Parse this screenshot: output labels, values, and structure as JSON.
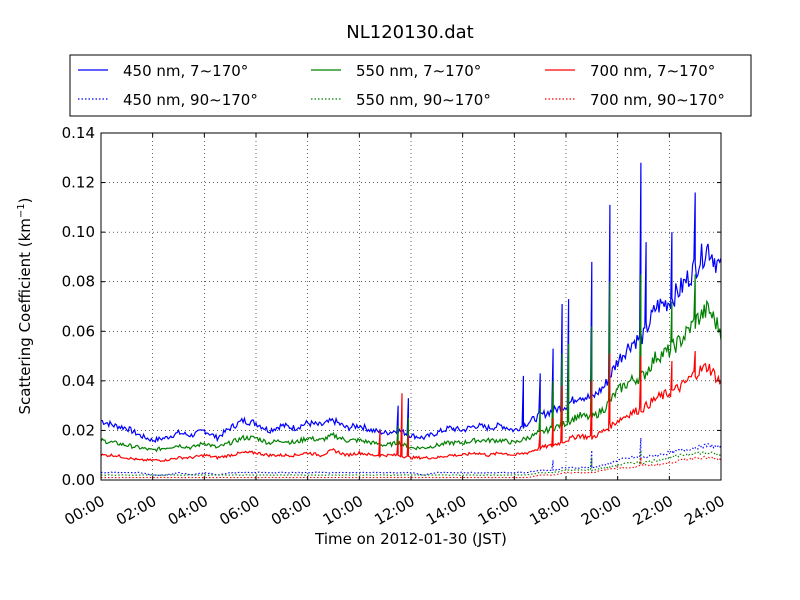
{
  "chart_data": {
    "type": "line",
    "title": "NL120130.dat",
    "xlabel": "Time on 2012-01-30 (JST)",
    "ylabel_main": "Scattering Coefficient (km",
    "ylabel_sup": "−1",
    "ylabel_close": ")",
    "xlim_hours": [
      0,
      24
    ],
    "ylim": [
      0,
      0.14
    ],
    "grid": true,
    "legend_position": "top",
    "x_ticks": [
      "00:00",
      "02:00",
      "04:00",
      "06:00",
      "08:00",
      "10:00",
      "12:00",
      "14:00",
      "16:00",
      "18:00",
      "20:00",
      "22:00",
      "24:00"
    ],
    "y_ticks": [
      "0.00",
      "0.02",
      "0.04",
      "0.06",
      "0.08",
      "0.10",
      "0.12",
      "0.14"
    ],
    "x_hours": [
      0,
      0.5,
      1,
      1.5,
      2,
      2.5,
      3,
      3.5,
      4,
      4.5,
      5,
      5.5,
      6,
      6.5,
      7,
      7.5,
      8,
      8.5,
      9,
      9.5,
      10,
      10.5,
      11,
      11.5,
      12,
      12.5,
      13,
      13.5,
      14,
      14.5,
      15,
      15.5,
      16,
      16.5,
      17,
      17.5,
      18,
      18.5,
      19,
      19.5,
      20,
      20.5,
      21,
      21.5,
      22,
      22.5,
      23,
      23.5,
      24
    ],
    "series": [
      {
        "name": "450 nm, 7∼170°",
        "color": "#0000ff",
        "style": "solid",
        "values": [
          0.024,
          0.022,
          0.021,
          0.018,
          0.016,
          0.017,
          0.019,
          0.018,
          0.02,
          0.017,
          0.021,
          0.024,
          0.023,
          0.02,
          0.022,
          0.021,
          0.023,
          0.022,
          0.024,
          0.021,
          0.022,
          0.02,
          0.019,
          0.02,
          0.018,
          0.017,
          0.019,
          0.021,
          0.02,
          0.022,
          0.021,
          0.022,
          0.02,
          0.023,
          0.026,
          0.028,
          0.03,
          0.034,
          0.033,
          0.038,
          0.048,
          0.055,
          0.058,
          0.07,
          0.072,
          0.078,
          0.086,
          0.094,
          0.085
        ],
        "spikes": [
          [
            11.5,
            0.03
          ],
          [
            11.9,
            0.033
          ],
          [
            16.35,
            0.042
          ],
          [
            17.0,
            0.043
          ],
          [
            17.5,
            0.053
          ],
          [
            17.85,
            0.071
          ],
          [
            18.1,
            0.073
          ],
          [
            19.0,
            0.088
          ],
          [
            19.7,
            0.111
          ],
          [
            20.9,
            0.128
          ],
          [
            21.1,
            0.096
          ],
          [
            22.1,
            0.1
          ],
          [
            23.0,
            0.116
          ]
        ]
      },
      {
        "name": "550 nm, 7∼170°",
        "color": "#008000",
        "style": "solid",
        "values": [
          0.016,
          0.015,
          0.014,
          0.013,
          0.012,
          0.013,
          0.014,
          0.013,
          0.015,
          0.013,
          0.015,
          0.017,
          0.017,
          0.015,
          0.016,
          0.015,
          0.017,
          0.016,
          0.018,
          0.016,
          0.016,
          0.015,
          0.014,
          0.015,
          0.013,
          0.013,
          0.014,
          0.015,
          0.015,
          0.016,
          0.016,
          0.016,
          0.015,
          0.017,
          0.019,
          0.021,
          0.023,
          0.026,
          0.025,
          0.029,
          0.036,
          0.04,
          0.042,
          0.05,
          0.052,
          0.057,
          0.064,
          0.069,
          0.06
        ],
        "spikes": [
          [
            11.5,
            0.022
          ],
          [
            11.9,
            0.025
          ],
          [
            17.0,
            0.029
          ],
          [
            17.5,
            0.04
          ],
          [
            17.85,
            0.051
          ],
          [
            18.1,
            0.055
          ],
          [
            19.0,
            0.062
          ],
          [
            19.7,
            0.08
          ],
          [
            20.9,
            0.083
          ],
          [
            22.1,
            0.072
          ],
          [
            23.0,
            0.083
          ]
        ]
      },
      {
        "name": "700 nm, 7∼170°",
        "color": "#ff0000",
        "style": "solid",
        "values": [
          0.01,
          0.01,
          0.009,
          0.008,
          0.008,
          0.008,
          0.009,
          0.009,
          0.01,
          0.009,
          0.01,
          0.011,
          0.011,
          0.01,
          0.01,
          0.01,
          0.011,
          0.01,
          0.012,
          0.01,
          0.011,
          0.01,
          0.01,
          0.01,
          0.009,
          0.009,
          0.009,
          0.01,
          0.01,
          0.011,
          0.01,
          0.011,
          0.01,
          0.011,
          0.013,
          0.014,
          0.016,
          0.018,
          0.017,
          0.02,
          0.024,
          0.027,
          0.029,
          0.033,
          0.035,
          0.038,
          0.043,
          0.046,
          0.039
        ],
        "spikes": [
          [
            10.8,
            0.02
          ],
          [
            11.5,
            0.016
          ],
          [
            11.65,
            0.035
          ],
          [
            11.9,
            0.018
          ],
          [
            17.0,
            0.02
          ],
          [
            17.5,
            0.025
          ],
          [
            17.85,
            0.038
          ],
          [
            19.0,
            0.04
          ],
          [
            19.7,
            0.051
          ],
          [
            20.9,
            0.05
          ],
          [
            22.1,
            0.048
          ],
          [
            23.0,
            0.052
          ]
        ]
      },
      {
        "name": "450 nm, 90∼170°",
        "color": "#0000ff",
        "style": "dotted",
        "values": [
          0.003,
          0.003,
          0.003,
          0.003,
          0.002,
          0.002,
          0.003,
          0.002,
          0.003,
          0.002,
          0.003,
          0.003,
          0.003,
          0.003,
          0.003,
          0.003,
          0.003,
          0.003,
          0.003,
          0.003,
          0.003,
          0.003,
          0.003,
          0.003,
          0.003,
          0.002,
          0.003,
          0.003,
          0.003,
          0.003,
          0.003,
          0.003,
          0.003,
          0.003,
          0.004,
          0.004,
          0.005,
          0.005,
          0.005,
          0.006,
          0.008,
          0.009,
          0.009,
          0.01,
          0.011,
          0.012,
          0.013,
          0.014,
          0.013
        ],
        "spikes": [
          [
            17.5,
            0.008
          ],
          [
            19.0,
            0.012
          ],
          [
            20.9,
            0.017
          ]
        ]
      },
      {
        "name": "550 nm, 90∼170°",
        "color": "#008000",
        "style": "dotted",
        "values": [
          0.002,
          0.002,
          0.002,
          0.002,
          0.002,
          0.002,
          0.002,
          0.002,
          0.002,
          0.002,
          0.002,
          0.002,
          0.002,
          0.002,
          0.002,
          0.002,
          0.002,
          0.002,
          0.002,
          0.002,
          0.002,
          0.002,
          0.002,
          0.002,
          0.002,
          0.002,
          0.002,
          0.002,
          0.002,
          0.002,
          0.002,
          0.002,
          0.002,
          0.002,
          0.003,
          0.003,
          0.004,
          0.004,
          0.004,
          0.005,
          0.006,
          0.007,
          0.007,
          0.008,
          0.009,
          0.01,
          0.011,
          0.011,
          0.01
        ],
        "spikes": [
          [
            19.0,
            0.009
          ],
          [
            20.9,
            0.012
          ]
        ]
      },
      {
        "name": "700 nm, 90∼170°",
        "color": "#ff0000",
        "style": "dotted",
        "values": [
          0.001,
          0.001,
          0.001,
          0.001,
          0.001,
          0.001,
          0.001,
          0.001,
          0.001,
          0.001,
          0.001,
          0.001,
          0.001,
          0.001,
          0.001,
          0.001,
          0.001,
          0.001,
          0.001,
          0.001,
          0.001,
          0.001,
          0.001,
          0.001,
          0.001,
          0.001,
          0.001,
          0.001,
          0.001,
          0.001,
          0.001,
          0.001,
          0.001,
          0.001,
          0.002,
          0.002,
          0.003,
          0.003,
          0.003,
          0.004,
          0.005,
          0.005,
          0.006,
          0.006,
          0.007,
          0.008,
          0.009,
          0.009,
          0.008
        ],
        "spikes": [
          [
            20.9,
            0.009
          ]
        ]
      }
    ],
    "legend_order": [
      0,
      1,
      2,
      3,
      4,
      5
    ]
  }
}
